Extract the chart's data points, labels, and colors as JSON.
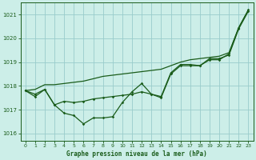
{
  "title": "Graphe pression niveau de la mer (hPa)",
  "background_color": "#cceee8",
  "grid_color": "#99cccc",
  "line_color": "#1a5c1a",
  "xlim": [
    -0.5,
    23.5
  ],
  "ylim": [
    1015.7,
    1021.5
  ],
  "yticks": [
    1016,
    1017,
    1018,
    1019,
    1020,
    1021
  ],
  "xticks": [
    0,
    1,
    2,
    3,
    4,
    5,
    6,
    7,
    8,
    9,
    10,
    11,
    12,
    13,
    14,
    15,
    16,
    17,
    18,
    19,
    20,
    21,
    22,
    23
  ],
  "series1_x": [
    0,
    1,
    2,
    3,
    4,
    5,
    6,
    7,
    8,
    9,
    10,
    11,
    12,
    13,
    14,
    15,
    16,
    17,
    18,
    19,
    20,
    21,
    22,
    23
  ],
  "series1_y": [
    1017.8,
    1017.65,
    1017.85,
    1017.2,
    1016.85,
    1016.75,
    1016.4,
    1016.65,
    1016.65,
    1016.7,
    1017.3,
    1017.75,
    1018.1,
    1017.65,
    1017.5,
    1018.5,
    1018.85,
    1018.85,
    1018.85,
    1019.15,
    1019.15,
    1019.3,
    1020.4,
    1021.15
  ],
  "series2_x": [
    0,
    1,
    2,
    3,
    4,
    5,
    6,
    7,
    8,
    9,
    10,
    11,
    12,
    13,
    14,
    15,
    16,
    17,
    18,
    19,
    20,
    21,
    22,
    23
  ],
  "series2_y": [
    1017.8,
    1017.55,
    1017.85,
    1017.2,
    1017.35,
    1017.3,
    1017.35,
    1017.45,
    1017.5,
    1017.55,
    1017.6,
    1017.65,
    1017.75,
    1017.65,
    1017.55,
    1018.55,
    1018.9,
    1018.9,
    1018.85,
    1019.1,
    1019.1,
    1019.35,
    1020.45,
    1021.2
  ],
  "series3_x": [
    0,
    1,
    2,
    3,
    4,
    5,
    6,
    7,
    8,
    9,
    10,
    11,
    12,
    13,
    14,
    15,
    16,
    17,
    18,
    19,
    20,
    21,
    22,
    23
  ],
  "series3_y": [
    1017.8,
    1017.85,
    1018.05,
    1018.05,
    1018.1,
    1018.15,
    1018.2,
    1018.3,
    1018.4,
    1018.45,
    1018.5,
    1018.55,
    1018.6,
    1018.65,
    1018.7,
    1018.85,
    1019.0,
    1019.1,
    1019.15,
    1019.2,
    1019.25,
    1019.4,
    1020.45,
    1021.2
  ]
}
